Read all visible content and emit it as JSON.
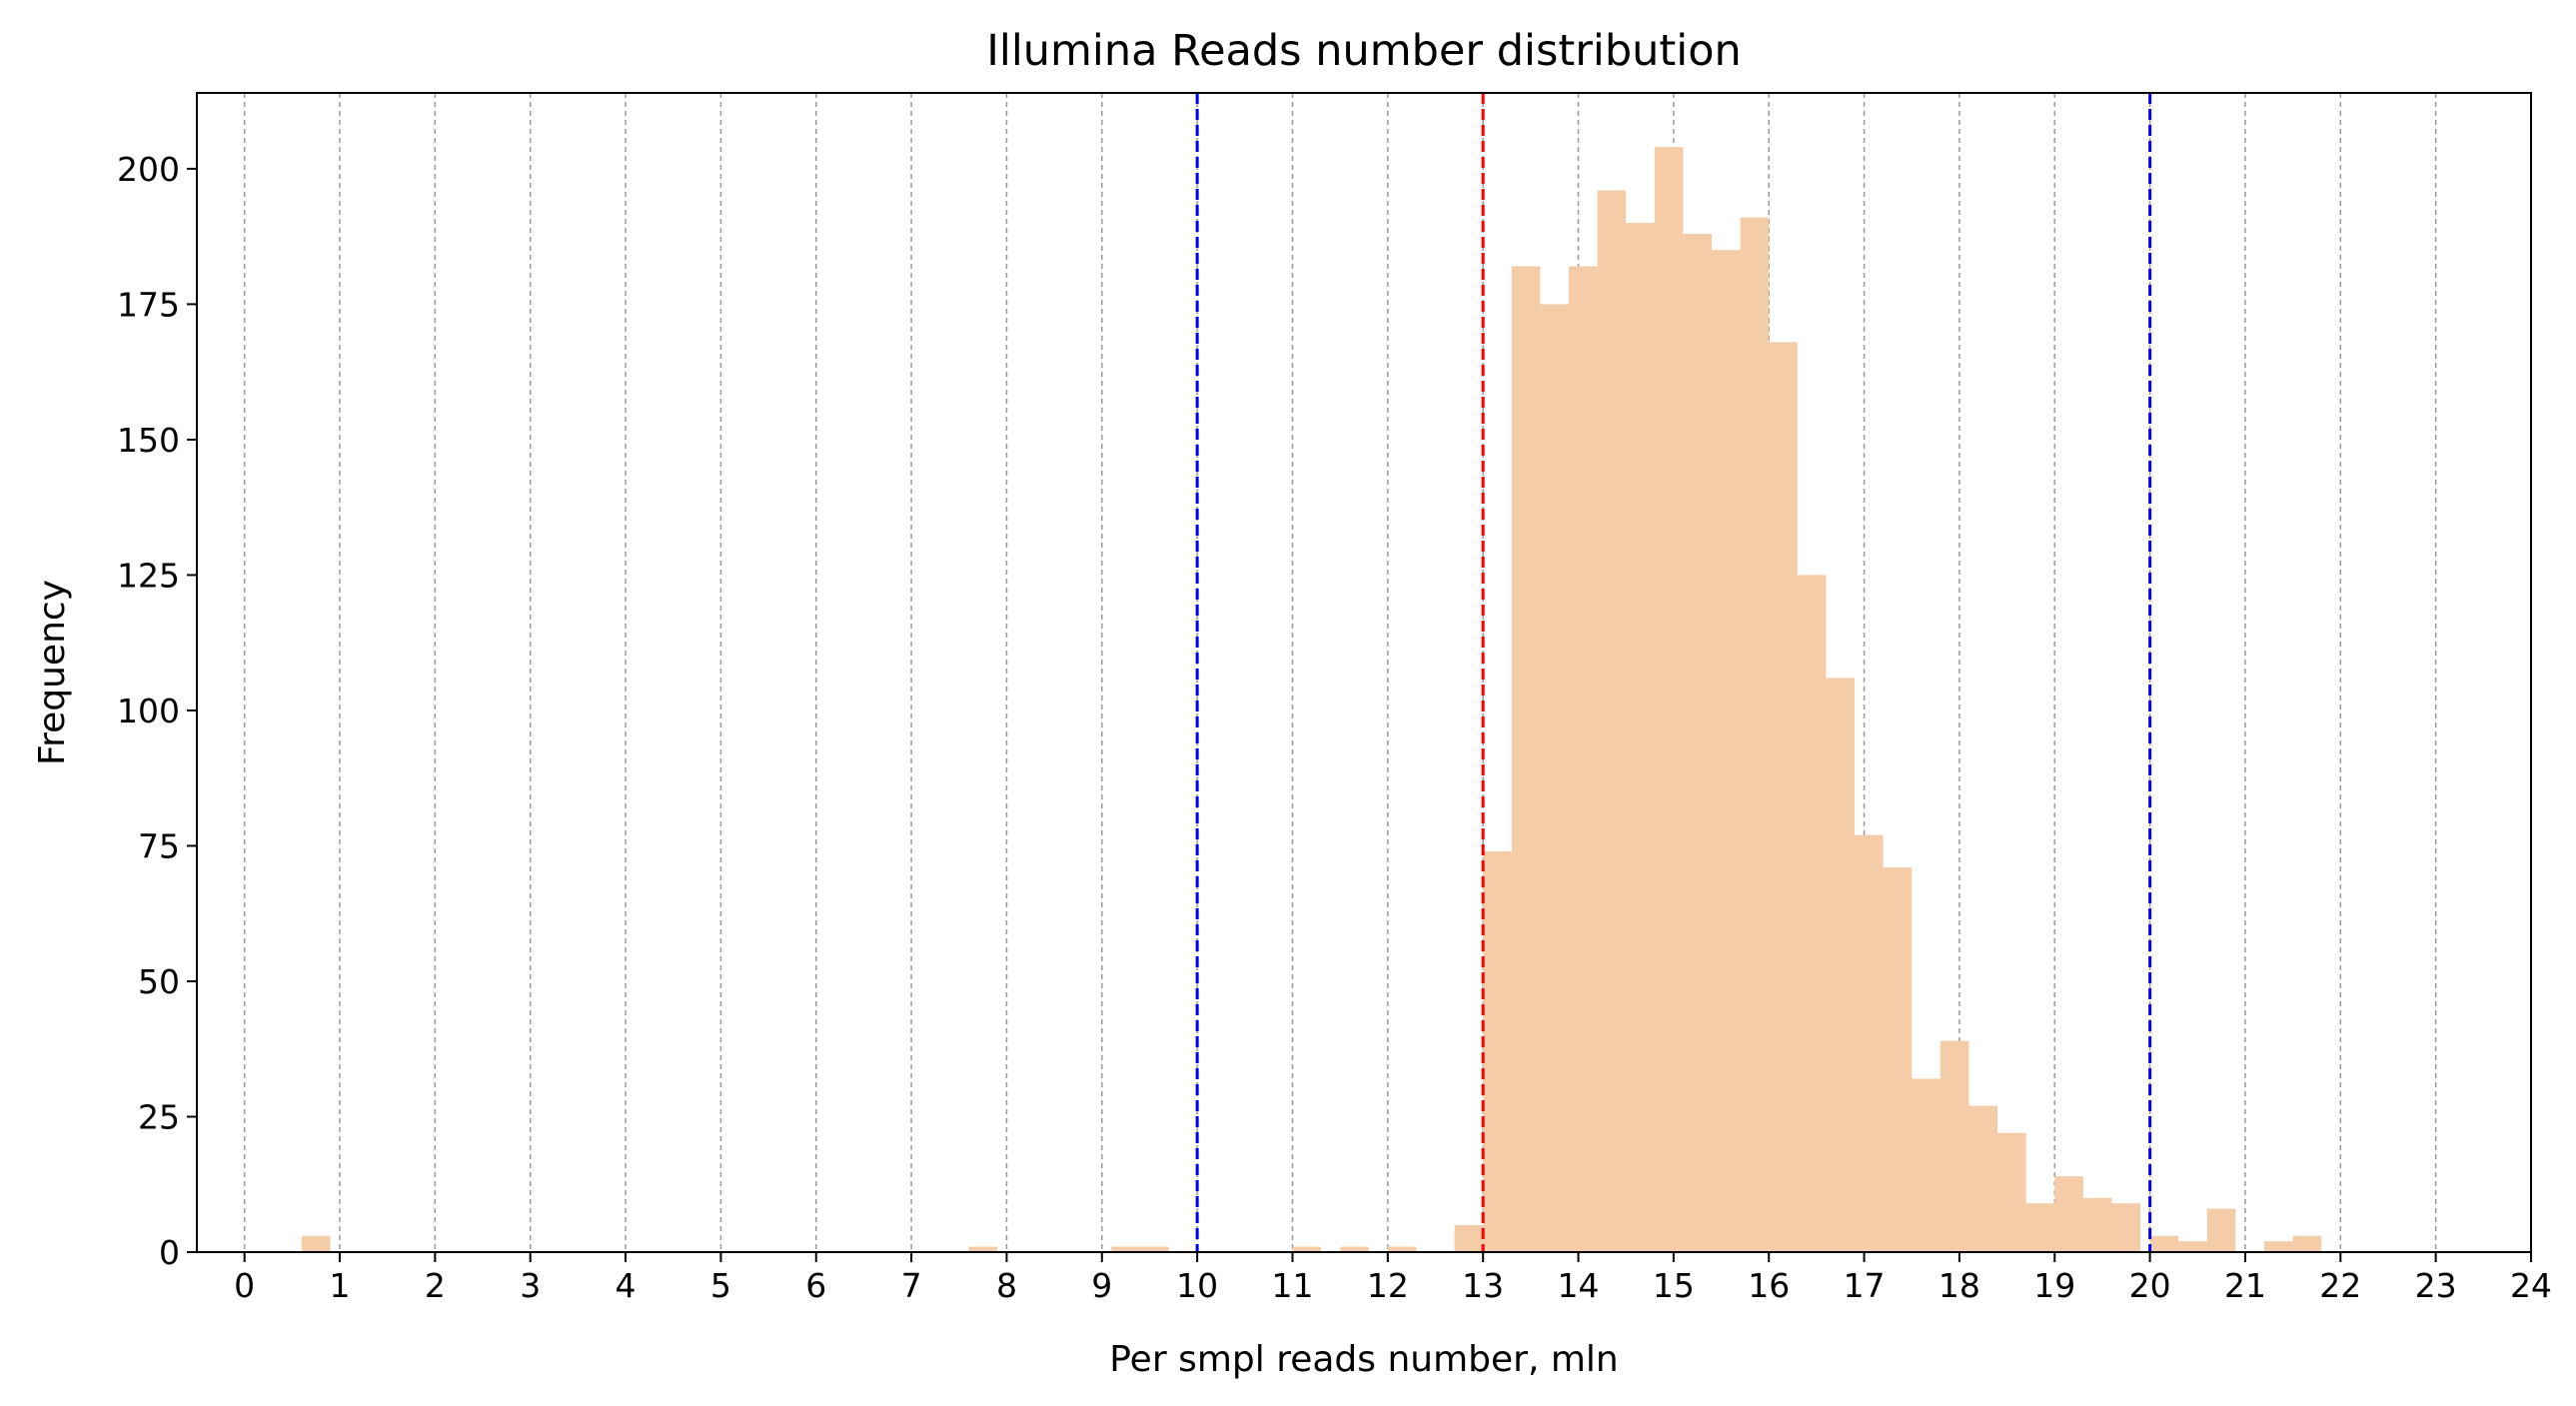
{
  "colors": {
    "bar_fill": "#f4cca7",
    "grid": "#9a9a9a",
    "mean_line": "#ff0000",
    "bound_line": "#0000ff",
    "axis": "#000000"
  },
  "chart_data": {
    "type": "bar",
    "title": "Illumina Reads number distribution",
    "xlabel": "Per smpl reads number, mln",
    "ylabel": "Frequency",
    "xlim": [
      -0.5,
      24
    ],
    "ylim": [
      0,
      214
    ],
    "x_ticks": [
      0,
      1,
      2,
      3,
      4,
      5,
      6,
      7,
      8,
      9,
      10,
      11,
      12,
      13,
      14,
      15,
      16,
      17,
      18,
      19,
      20,
      21,
      22,
      23,
      24
    ],
    "y_ticks": [
      0,
      25,
      50,
      75,
      100,
      125,
      150,
      175,
      200
    ],
    "grid": "vertical, dashed",
    "bin_width": 0.3,
    "bins": [
      {
        "x0": 0.6,
        "count": 3
      },
      {
        "x0": 7.6,
        "count": 1
      },
      {
        "x0": 9.1,
        "count": 1
      },
      {
        "x0": 9.4,
        "count": 1
      },
      {
        "x0": 11.0,
        "count": 1
      },
      {
        "x0": 11.5,
        "count": 1
      },
      {
        "x0": 12.0,
        "count": 1
      },
      {
        "x0": 12.7,
        "count": 5
      },
      {
        "x0": 13.0,
        "count": 74
      },
      {
        "x0": 13.3,
        "count": 182
      },
      {
        "x0": 13.6,
        "count": 175
      },
      {
        "x0": 13.9,
        "count": 182
      },
      {
        "x0": 14.2,
        "count": 196
      },
      {
        "x0": 14.5,
        "count": 190
      },
      {
        "x0": 14.8,
        "count": 204
      },
      {
        "x0": 15.1,
        "count": 188
      },
      {
        "x0": 15.4,
        "count": 185
      },
      {
        "x0": 15.7,
        "count": 191
      },
      {
        "x0": 16.0,
        "count": 168
      },
      {
        "x0": 16.3,
        "count": 125
      },
      {
        "x0": 16.6,
        "count": 106
      },
      {
        "x0": 16.9,
        "count": 77
      },
      {
        "x0": 17.2,
        "count": 71
      },
      {
        "x0": 17.5,
        "count": 32
      },
      {
        "x0": 17.8,
        "count": 39
      },
      {
        "x0": 18.1,
        "count": 27
      },
      {
        "x0": 18.4,
        "count": 22
      },
      {
        "x0": 18.7,
        "count": 9
      },
      {
        "x0": 19.0,
        "count": 14
      },
      {
        "x0": 19.3,
        "count": 10
      },
      {
        "x0": 19.6,
        "count": 9
      },
      {
        "x0": 20.0,
        "count": 3
      },
      {
        "x0": 20.3,
        "count": 2
      },
      {
        "x0": 20.6,
        "count": 8
      },
      {
        "x0": 21.2,
        "count": 2
      },
      {
        "x0": 21.5,
        "count": 3
      }
    ],
    "reference_lines": [
      {
        "x": 10,
        "color": "#0000ff",
        "style": "dashed"
      },
      {
        "x": 13,
        "color": "#ff0000",
        "style": "dashed"
      },
      {
        "x": 20,
        "color": "#0000ff",
        "style": "dashed"
      }
    ]
  }
}
